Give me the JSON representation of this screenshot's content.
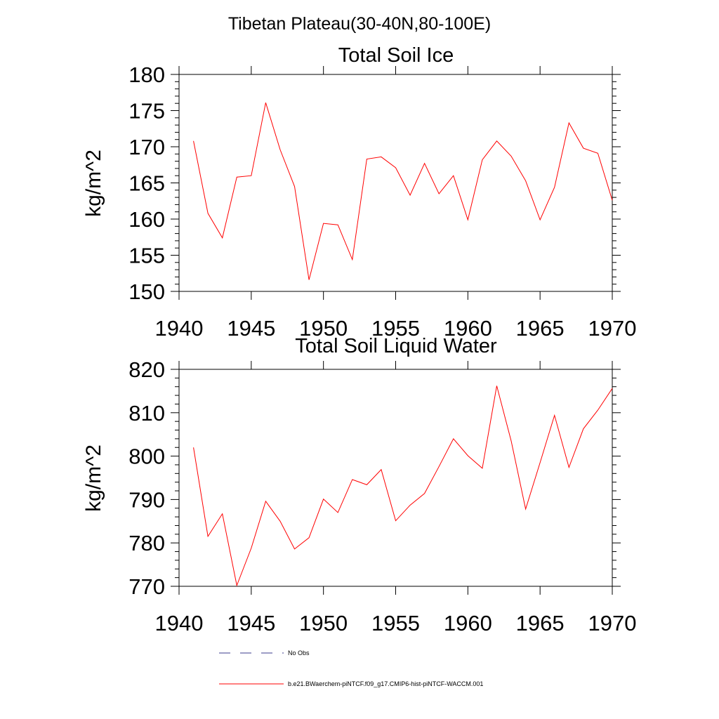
{
  "figure": {
    "title": "Tibetan Plateau(30-40N,80-100E)"
  },
  "colors": {
    "series_line": "#ff0000",
    "obs_line": "#3b3b8c",
    "axis": "#000000",
    "background": "#ffffff"
  },
  "legend": {
    "placement": "bottom",
    "items": [
      {
        "label": "No Obs",
        "style": "dashed",
        "color": "#3b3b8c"
      },
      {
        "label": "b.e21.BWaerchem-piNTCF.f09_g17.CMIP6-hist-piNTCF-WACCM.001",
        "style": "solid",
        "color": "#ff0000"
      }
    ]
  },
  "chart_data": [
    {
      "type": "line",
      "title": "Total Soil Ice",
      "xlabel": "",
      "ylabel": "kg/m^2",
      "xlim": [
        1940,
        1970
      ],
      "ylim": [
        150,
        180
      ],
      "xticks": [
        1940,
        1945,
        1950,
        1955,
        1960,
        1965,
        1970
      ],
      "yticks": [
        150,
        155,
        160,
        165,
        170,
        175,
        180
      ],
      "grid": false,
      "series": [
        {
          "color": "#ff0000",
          "x": [
            1941,
            1942,
            1943,
            1944,
            1945,
            1946,
            1947,
            1948,
            1949,
            1950,
            1951,
            1952,
            1953,
            1954,
            1955,
            1956,
            1957,
            1958,
            1959,
            1960,
            1961,
            1962,
            1963,
            1964,
            1965,
            1966,
            1967,
            1968,
            1969,
            1970
          ],
          "values": [
            170.8,
            160.8,
            157.4,
            165.8,
            166.0,
            176.1,
            169.6,
            164.5,
            151.6,
            159.4,
            159.2,
            154.4,
            168.3,
            168.6,
            167.1,
            163.3,
            167.7,
            163.5,
            166.0,
            159.9,
            168.2,
            170.8,
            168.7,
            165.3,
            159.9,
            164.4,
            173.3,
            169.8,
            169.1,
            162.6
          ]
        }
      ]
    },
    {
      "type": "line",
      "title": "Total Soil Liquid Water",
      "xlabel": "",
      "ylabel": "kg/m^2",
      "xlim": [
        1940,
        1970
      ],
      "ylim": [
        770,
        820
      ],
      "xticks": [
        1940,
        1945,
        1950,
        1955,
        1960,
        1965,
        1970
      ],
      "yticks": [
        770,
        780,
        790,
        800,
        810,
        820
      ],
      "grid": false,
      "series": [
        {
          "color": "#ff0000",
          "x": [
            1941,
            1942,
            1943,
            1944,
            1945,
            1946,
            1947,
            1948,
            1949,
            1950,
            1951,
            1952,
            1953,
            1954,
            1955,
            1956,
            1957,
            1958,
            1959,
            1960,
            1961,
            1962,
            1963,
            1964,
            1965,
            1966,
            1967,
            1968,
            1969,
            1970
          ],
          "values": [
            802.0,
            781.5,
            786.7,
            770.2,
            778.8,
            789.6,
            785.0,
            778.6,
            781.2,
            790.1,
            787.0,
            794.6,
            793.4,
            796.9,
            785.1,
            788.7,
            791.4,
            797.6,
            804.0,
            800.1,
            797.2,
            816.2,
            803.5,
            787.8,
            798.5,
            809.4,
            797.4,
            806.3,
            810.6,
            815.6
          ]
        }
      ]
    }
  ]
}
